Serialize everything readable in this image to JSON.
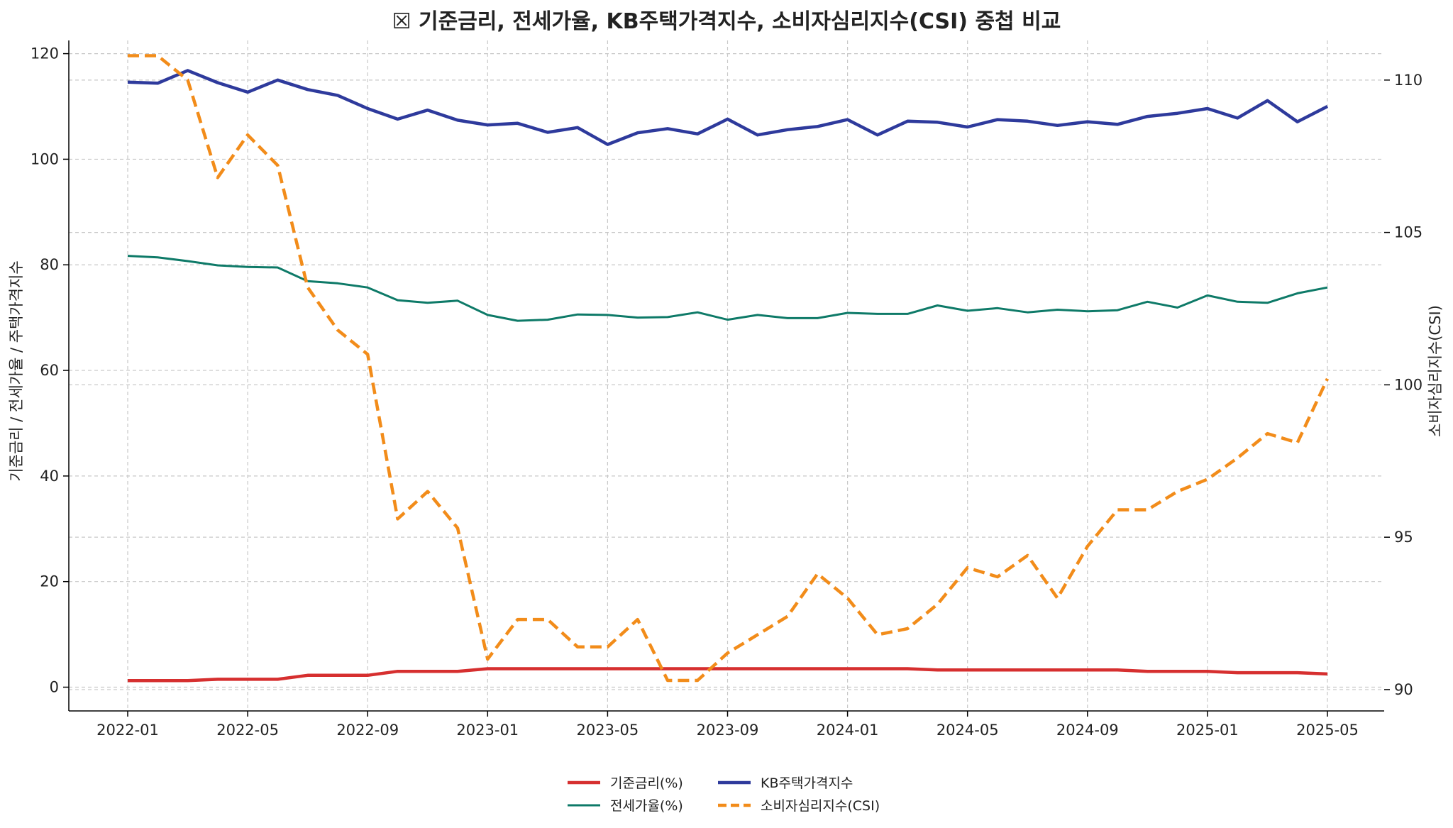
{
  "chart_data": {
    "type": "line",
    "title": "☒ 기준금리, 전세가율, KB주택가격지수, 소비자심리지수(CSI) 중첩 비교",
    "ylabel_left": "기준금리 / 전세가율 / 주택가격지수",
    "ylabel_right": "소비자심리지수(CSI)",
    "x": [
      "2022-01",
      "2022-02",
      "2022-03",
      "2022-04",
      "2022-05",
      "2022-06",
      "2022-07",
      "2022-08",
      "2022-09",
      "2022-10",
      "2022-11",
      "2022-12",
      "2023-01",
      "2023-02",
      "2023-03",
      "2023-04",
      "2023-05",
      "2023-06",
      "2023-07",
      "2023-08",
      "2023-09",
      "2023-10",
      "2023-11",
      "2023-12",
      "2024-01",
      "2024-02",
      "2024-03",
      "2024-04",
      "2024-05",
      "2024-06",
      "2024-07",
      "2024-08",
      "2024-09",
      "2024-10",
      "2024-11",
      "2024-12",
      "2025-01",
      "2025-02",
      "2025-03",
      "2025-04",
      "2025-05"
    ],
    "x_ticks": [
      "2022-01",
      "2022-05",
      "2022-09",
      "2023-01",
      "2023-05",
      "2023-09",
      "2024-01",
      "2024-05",
      "2024-09",
      "2025-01",
      "2025-05"
    ],
    "ylim_left": [
      -4.5,
      122.5
    ],
    "yticks_left": [
      0,
      20,
      40,
      60,
      80,
      100,
      120
    ],
    "ylim_right": [
      89.3,
      111.3
    ],
    "yticks_right": [
      90,
      95,
      100,
      105,
      110
    ],
    "grid": true,
    "legend_position": "bottom-center",
    "series": [
      {
        "name": "기준금리(%)",
        "axis": "left",
        "color": "#d62f2f",
        "dash": "solid",
        "values": [
          1.25,
          1.25,
          1.25,
          1.5,
          1.5,
          1.5,
          2.25,
          2.25,
          2.25,
          3.0,
          3.0,
          3.0,
          3.5,
          3.5,
          3.5,
          3.5,
          3.5,
          3.5,
          3.5,
          3.5,
          3.5,
          3.5,
          3.5,
          3.5,
          3.5,
          3.5,
          3.5,
          3.25,
          3.25,
          3.25,
          3.25,
          3.25,
          3.25,
          3.25,
          3.0,
          3.0,
          3.0,
          2.75,
          2.75,
          2.75,
          2.5
        ]
      },
      {
        "name": "전세가율(%)",
        "axis": "left",
        "color": "#0e7a68",
        "dash": "solid",
        "values": [
          81.7,
          81.4,
          80.7,
          79.9,
          79.6,
          79.5,
          76.9,
          76.5,
          75.7,
          73.3,
          72.8,
          73.2,
          70.5,
          69.4,
          69.6,
          70.6,
          70.5,
          70.0,
          70.1,
          71.0,
          69.6,
          70.5,
          69.9,
          69.9,
          70.9,
          70.7,
          70.7,
          72.3,
          71.3,
          71.8,
          71.0,
          71.5,
          71.2,
          71.4,
          73.0,
          71.9,
          74.2,
          73.0,
          72.8,
          74.6,
          75.7
        ]
      },
      {
        "name": "KB주택가격지수",
        "axis": "left",
        "color": "#2e3a9c",
        "dash": "solid",
        "values": [
          114.6,
          114.4,
          116.8,
          114.5,
          112.7,
          115.0,
          113.2,
          112.1,
          109.6,
          107.6,
          109.3,
          107.4,
          106.5,
          106.8,
          105.1,
          106.0,
          102.8,
          105.0,
          105.8,
          104.8,
          107.6,
          104.6,
          105.6,
          106.2,
          107.5,
          104.6,
          107.2,
          107.0,
          106.1,
          107.5,
          107.2,
          106.4,
          107.1,
          106.6,
          108.1,
          108.7,
          109.6,
          107.8,
          111.1,
          107.1,
          110.0
        ]
      },
      {
        "name": "소비자심리지수(CSI)",
        "axis": "right",
        "color": "#f28c1a",
        "dash": "dashed",
        "values": [
          110.8,
          110.8,
          110.0,
          106.8,
          108.2,
          107.2,
          103.2,
          101.8,
          101.0,
          95.6,
          96.5,
          95.3,
          91.0,
          92.3,
          92.3,
          91.4,
          91.4,
          92.3,
          90.3,
          90.3,
          91.2,
          91.8,
          92.4,
          93.8,
          93.0,
          91.8,
          92.0,
          92.8,
          94.0,
          93.7,
          94.4,
          93.0,
          94.7,
          95.9,
          95.9,
          96.5,
          96.9,
          97.6,
          98.4,
          98.1,
          100.2
        ]
      }
    ]
  }
}
